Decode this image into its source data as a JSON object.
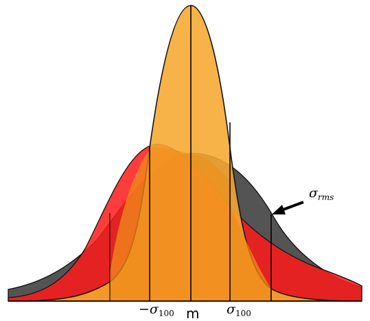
{
  "labels": {
    "mean": "m",
    "neg_sigma100_symbol": "−σ",
    "neg_sigma100_sub": "100",
    "sigma100_symbol": "σ",
    "sigma100_sub": "100",
    "sigma_rms_symbol": "σ",
    "sigma_rms_sub": "rms"
  },
  "colors": {
    "dark_curve": "#454545",
    "red_curve": "#ff1a1a",
    "red_overlap": "#e00f0f",
    "orange_curve": "#f6a92e",
    "orange_overlap": "#f08c1a",
    "axis": "#000000",
    "arrow": "#000000"
  }
}
